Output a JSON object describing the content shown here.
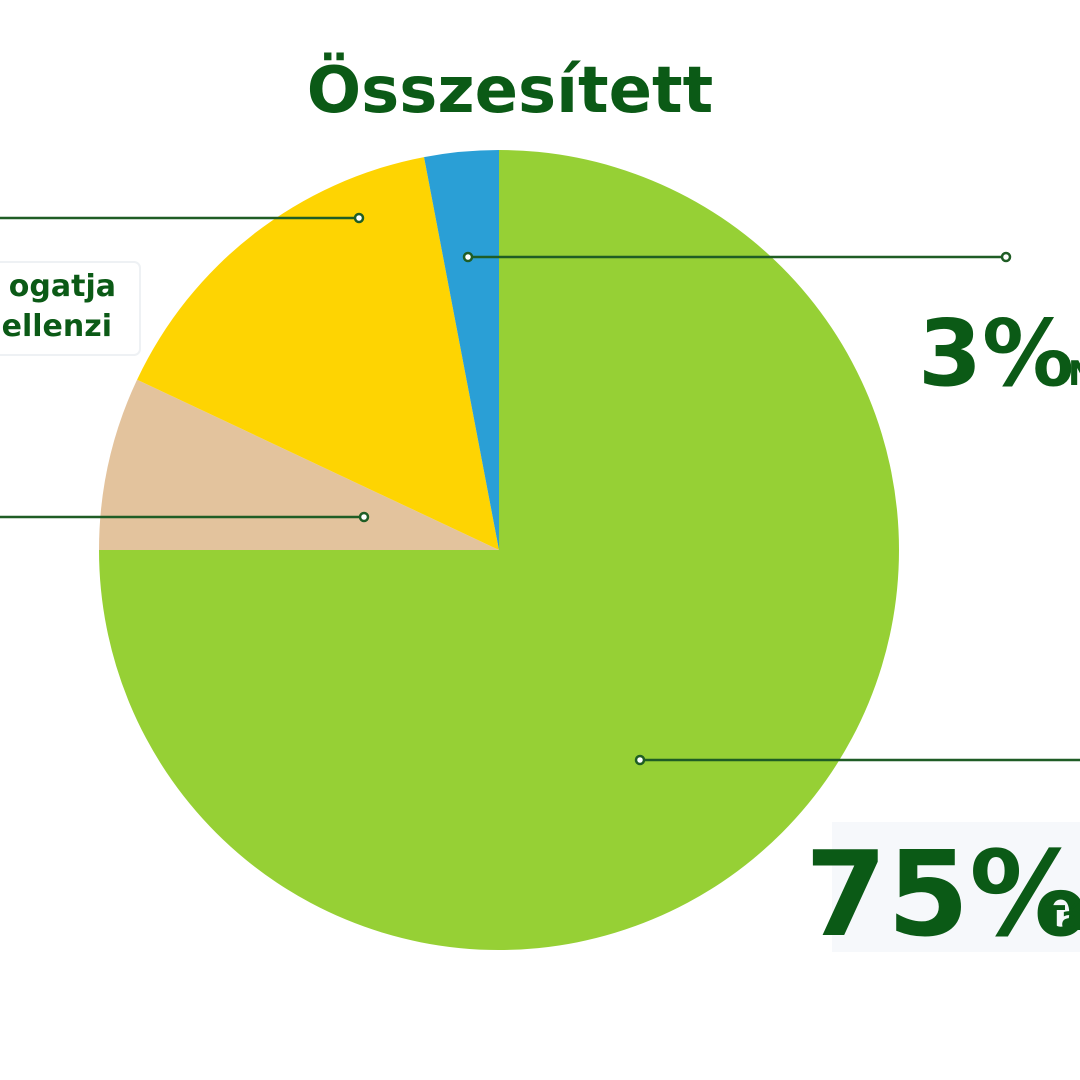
{
  "chart_data": {
    "type": "pie",
    "title": "Összesített",
    "categories": [
      "Tá",
      null,
      null,
      "N"
    ],
    "values": [
      75,
      7,
      15,
      3
    ],
    "value_labels": [
      "75%",
      null,
      null,
      "3%"
    ],
    "colors": [
      "#96d035",
      "#e3c39d",
      "#fed402",
      "#2a9fd6"
    ],
    "annotations": [
      "ogatja",
      "ellenzi"
    ]
  }
}
